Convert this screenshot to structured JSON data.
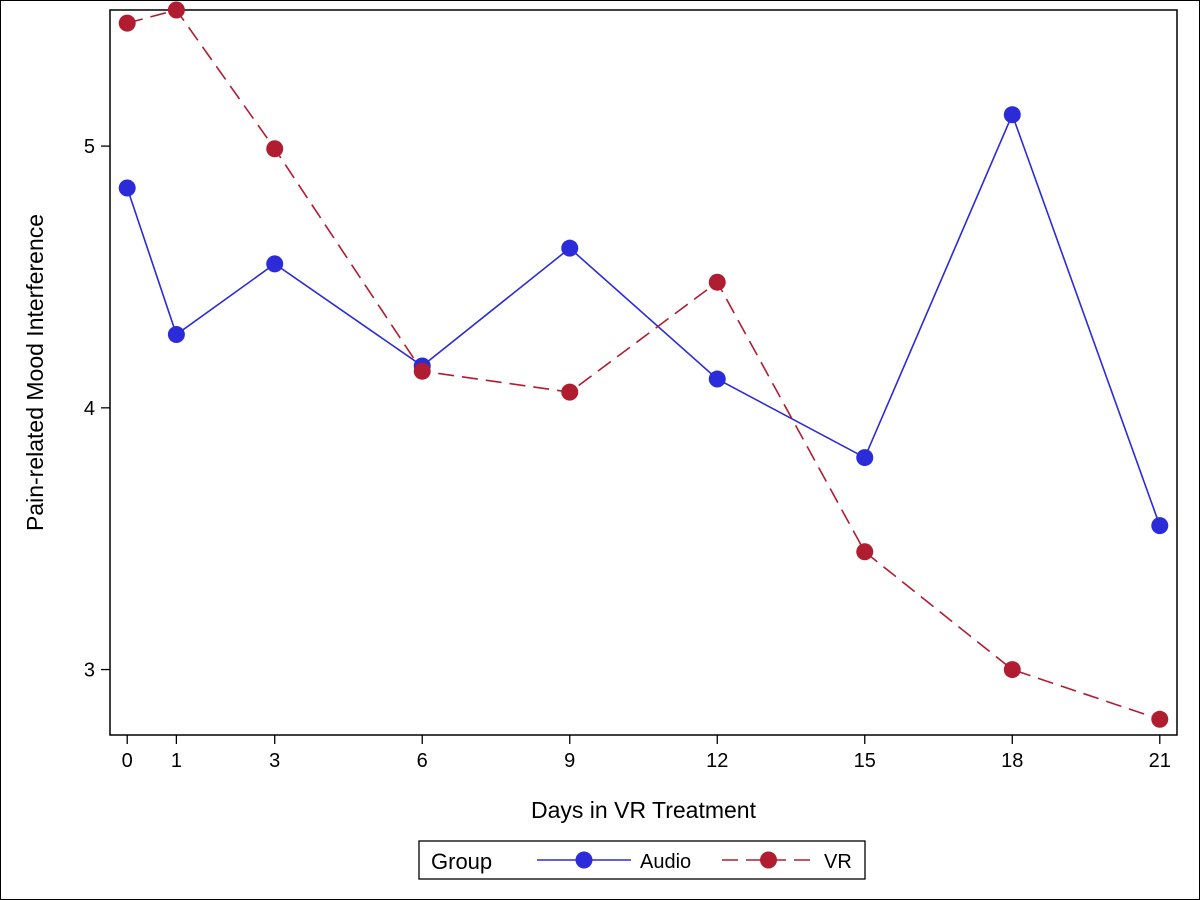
{
  "chart_data": {
    "type": "line",
    "title": "",
    "xlabel": "Days in VR Treatment",
    "ylabel": "Pain-related Mood Interference",
    "x": [
      0,
      1,
      3,
      6,
      9,
      12,
      15,
      18,
      21
    ],
    "xticks": [
      "0",
      "1",
      "3",
      "6",
      "9",
      "12",
      "15",
      "18",
      "21"
    ],
    "yticks": [
      3,
      4,
      5
    ],
    "xlim": [
      -0.35,
      21.35
    ],
    "ylim": [
      2.75,
      5.52
    ],
    "grid": false,
    "legend": {
      "placement": "bottom-center",
      "title": "Group"
    },
    "series": [
      {
        "name": "Audio",
        "color": "#2b2bd9",
        "line_style": "solid",
        "values": [
          4.84,
          4.28,
          4.55,
          4.16,
          4.61,
          4.11,
          3.81,
          5.12,
          3.55
        ]
      },
      {
        "name": "VR",
        "color": "#b11d30",
        "line_style": "dashed",
        "values": [
          5.47,
          5.52,
          4.99,
          4.14,
          4.06,
          4.48,
          3.45,
          3.0,
          2.81
        ]
      }
    ]
  }
}
